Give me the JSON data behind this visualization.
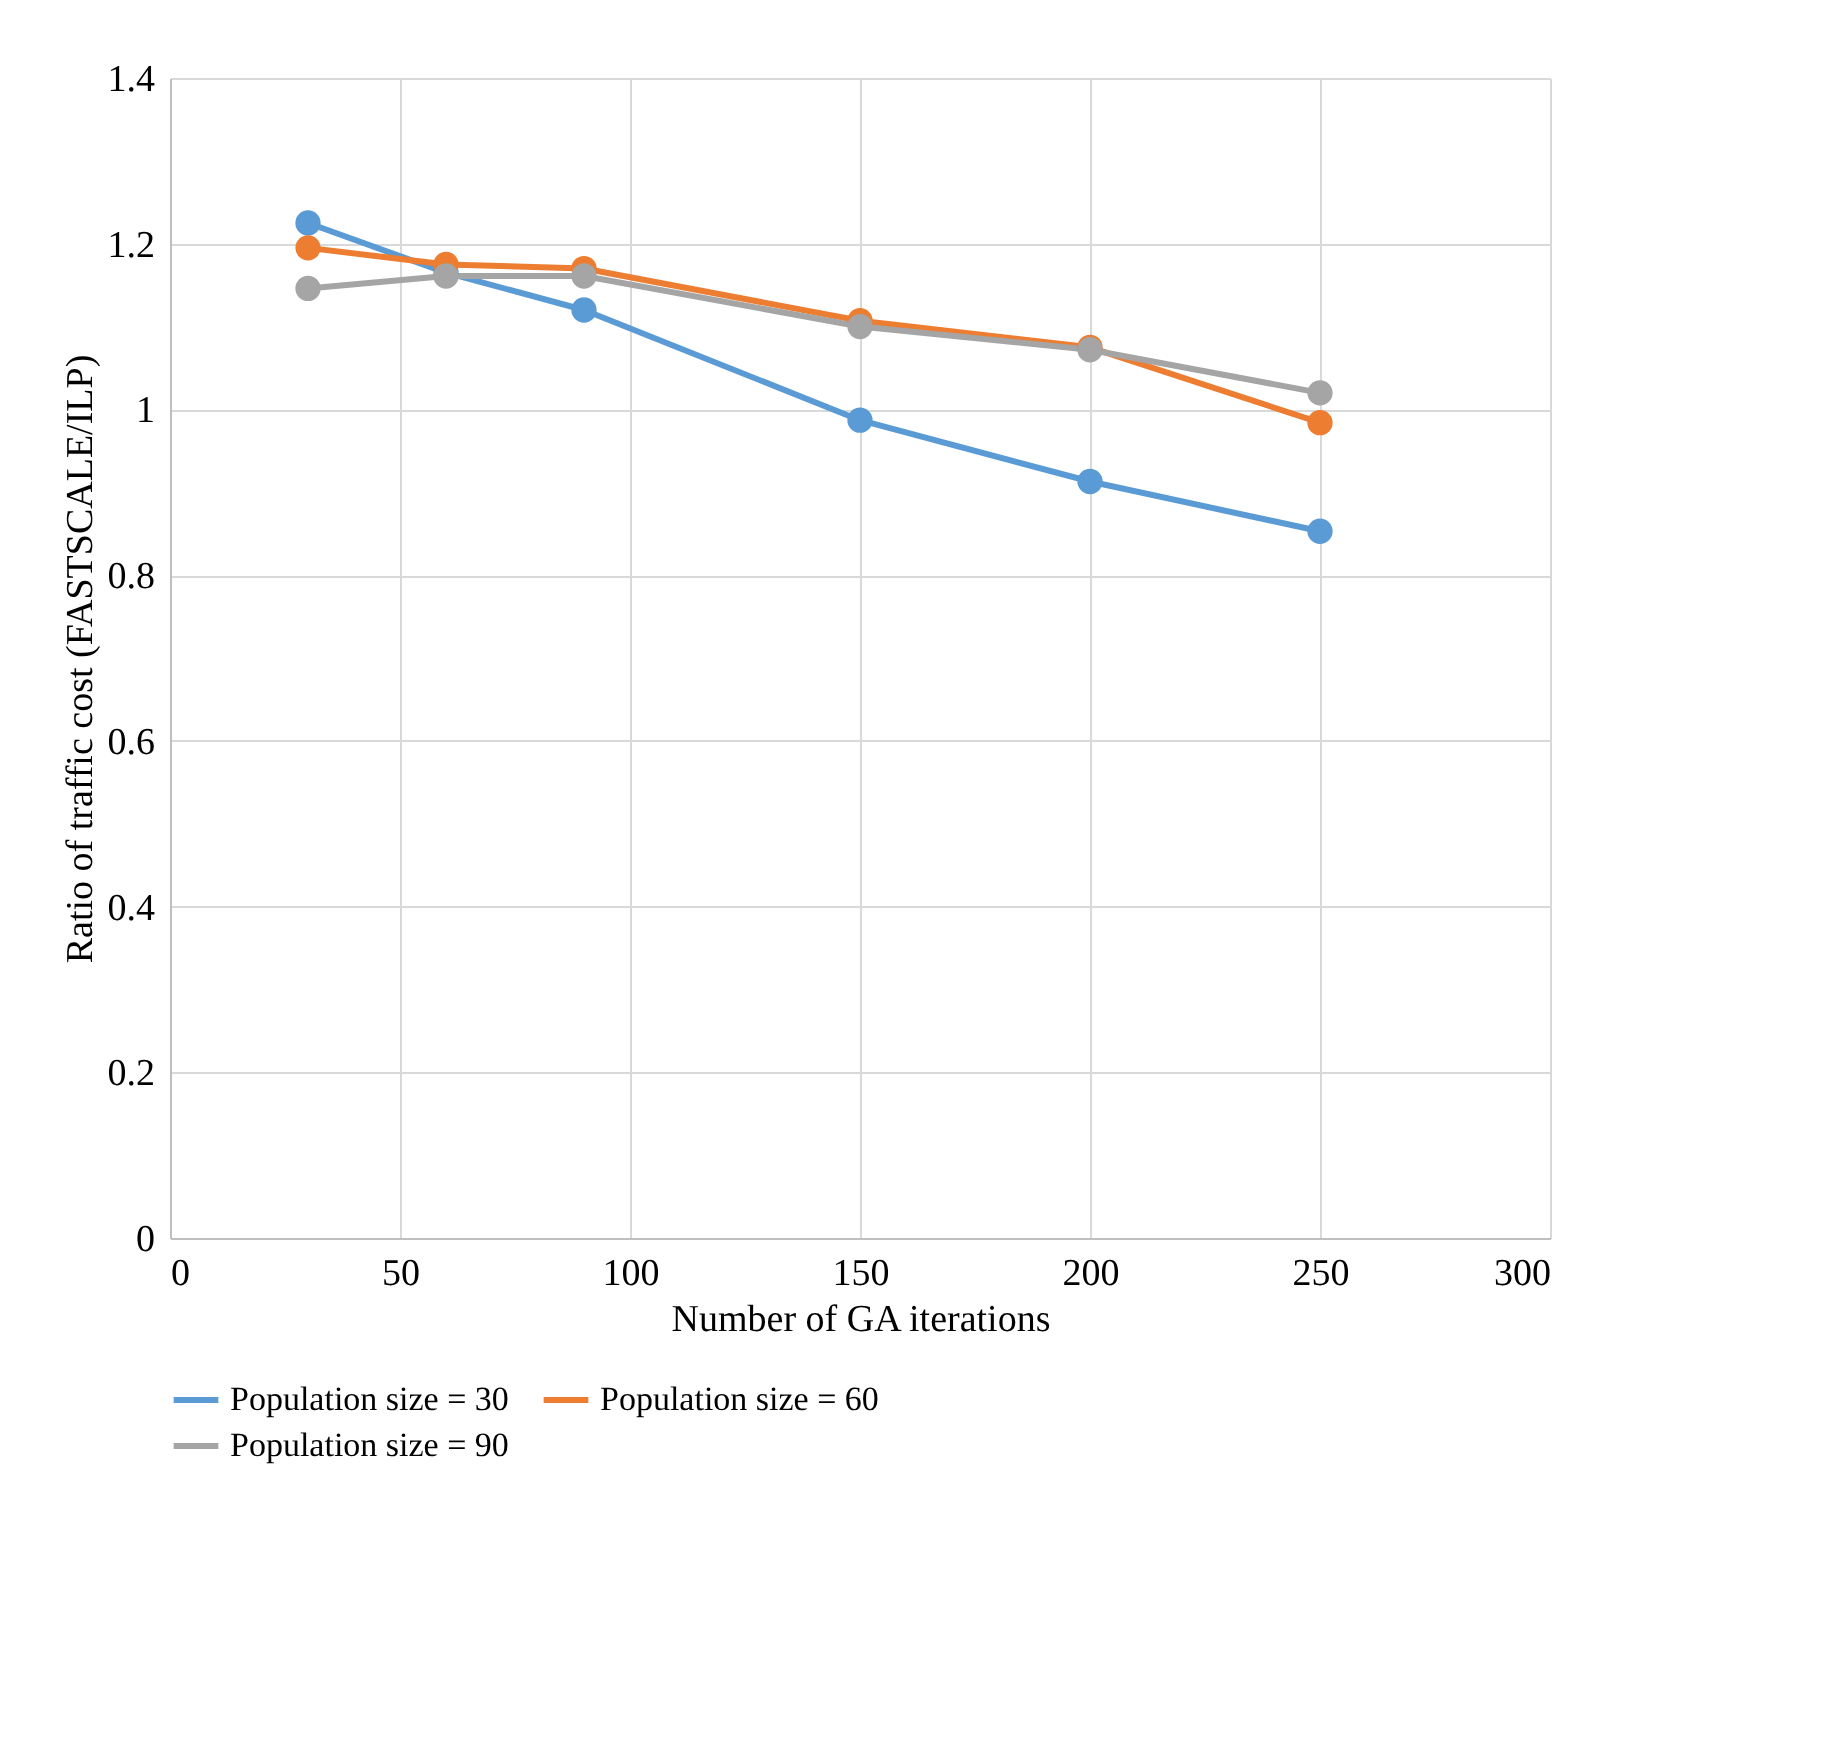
{
  "chart_data": {
    "type": "line",
    "xlabel": "Number of GA iterations",
    "ylabel": "Ratio of traffic cost (FASTSCALE/ILP)",
    "x": [
      30,
      60,
      90,
      150,
      200,
      250
    ],
    "series": [
      {
        "name": "Population size = 30",
        "color": "#5b9bd5",
        "values": [
          1.225,
          1.165,
          1.12,
          0.987,
          0.913,
          0.853
        ]
      },
      {
        "name": "Population size = 60",
        "color": "#ed7d31",
        "values": [
          1.195,
          1.175,
          1.17,
          1.107,
          1.075,
          0.984
        ]
      },
      {
        "name": "Population size = 90",
        "color": "#a5a5a5",
        "values": [
          1.146,
          1.161,
          1.161,
          1.1,
          1.072,
          1.02
        ]
      }
    ],
    "xlim": [
      0,
      300
    ],
    "xticks": [
      0,
      50,
      100,
      150,
      200,
      250,
      300
    ],
    "ylim": [
      0,
      1.4
    ],
    "yticks": [
      {
        "value": 0,
        "label": "0"
      },
      0.2,
      0.4,
      0.6,
      0.8,
      {
        "value": 1,
        "label": "1"
      },
      1.2,
      1.4
    ],
    "grid": true,
    "legend": "bottom",
    "marker": "circle",
    "line_style": "solid"
  }
}
